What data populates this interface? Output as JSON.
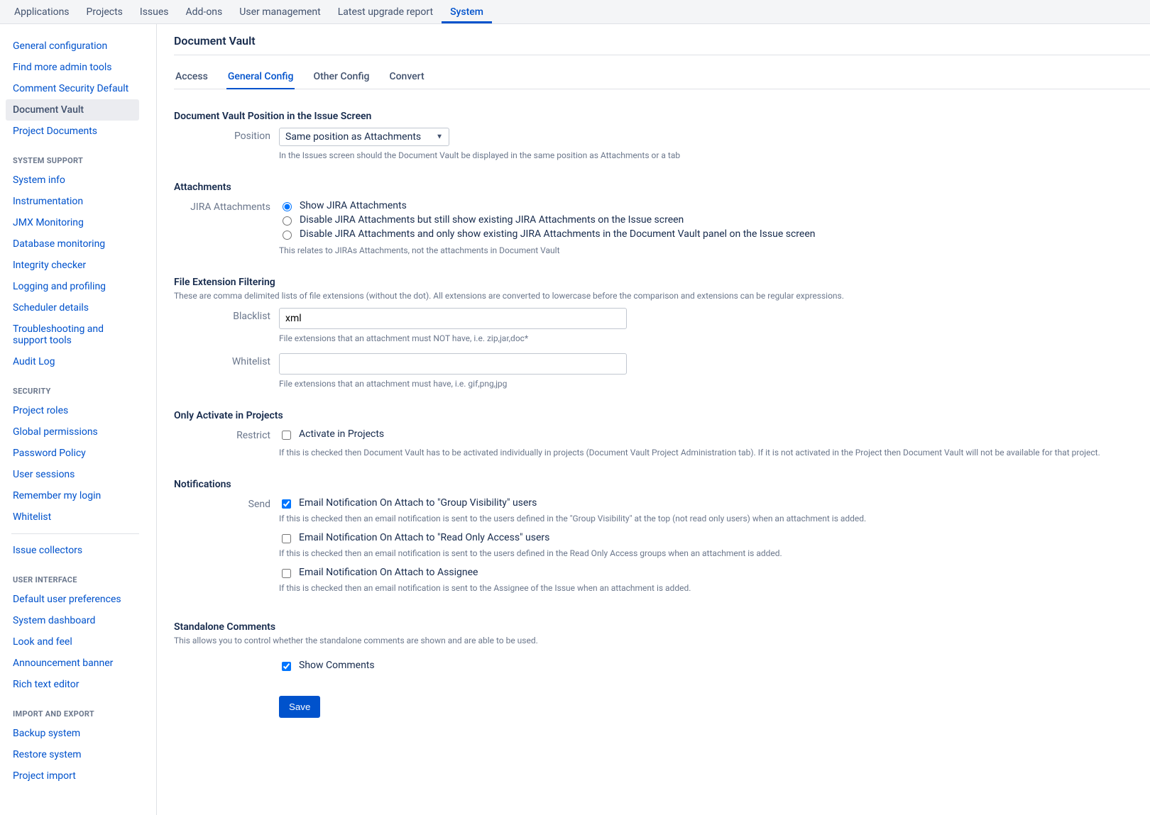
{
  "topnav": {
    "items": [
      {
        "label": "Applications"
      },
      {
        "label": "Projects"
      },
      {
        "label": "Issues"
      },
      {
        "label": "Add-ons"
      },
      {
        "label": "User management"
      },
      {
        "label": "Latest upgrade report"
      },
      {
        "label": "System"
      }
    ],
    "active_index": 6
  },
  "sidebar": {
    "top_items": [
      {
        "label": "General configuration"
      },
      {
        "label": "Find more admin tools"
      },
      {
        "label": "Comment Security Default"
      },
      {
        "label": "Document Vault"
      },
      {
        "label": "Project Documents"
      }
    ],
    "active_index": 3,
    "sections": [
      {
        "heading": "System Support",
        "items": [
          {
            "label": "System info"
          },
          {
            "label": "Instrumentation"
          },
          {
            "label": "JMX Monitoring"
          },
          {
            "label": "Database monitoring"
          },
          {
            "label": "Integrity checker"
          },
          {
            "label": "Logging and profiling"
          },
          {
            "label": "Scheduler details"
          },
          {
            "label": "Troubleshooting and support tools"
          },
          {
            "label": "Audit Log"
          }
        ]
      },
      {
        "heading": "Security",
        "items": [
          {
            "label": "Project roles"
          },
          {
            "label": "Global permissions"
          },
          {
            "label": "Password Policy"
          },
          {
            "label": "User sessions"
          },
          {
            "label": "Remember my login"
          },
          {
            "label": "Whitelist"
          }
        ]
      },
      {
        "heading": "",
        "items": [
          {
            "label": "Issue collectors"
          }
        ]
      },
      {
        "heading": "User Interface",
        "items": [
          {
            "label": "Default user preferences"
          },
          {
            "label": "System dashboard"
          },
          {
            "label": "Look and feel"
          },
          {
            "label": "Announcement banner"
          },
          {
            "label": "Rich text editor"
          }
        ]
      },
      {
        "heading": "Import and Export",
        "items": [
          {
            "label": "Backup system"
          },
          {
            "label": "Restore system"
          },
          {
            "label": "Project import"
          }
        ]
      }
    ]
  },
  "page": {
    "title": "Document Vault",
    "tabs": [
      {
        "label": "Access"
      },
      {
        "label": "General Config"
      },
      {
        "label": "Other Config"
      },
      {
        "label": "Convert"
      }
    ],
    "active_tab": 1
  },
  "position_section": {
    "title": "Document Vault Position in the Issue Screen",
    "label": "Position",
    "select_value": "Same position as Attachments",
    "help": "In the Issues screen should the Document Vault be displayed in the same position as Attachments or a tab"
  },
  "attachments_section": {
    "title": "Attachments",
    "label": "JIRA Attachments",
    "options": [
      {
        "label": "Show JIRA Attachments",
        "checked": true
      },
      {
        "label": "Disable JIRA Attachments but still show existing JIRA Attachments on the Issue screen",
        "checked": false
      },
      {
        "label": "Disable JIRA Attachments and only show existing JIRA Attachments in the Document Vault panel on the Issue screen",
        "checked": false
      }
    ],
    "help": "This relates to JIRAs Attachments, not the attachments in Document Vault"
  },
  "filter_section": {
    "title": "File Extension Filtering",
    "description": "These are comma delimited lists of file extensions (without the dot). All extensions are converted to lowercase before the comparison and extensions can be regular expressions.",
    "blacklist_label": "Blacklist",
    "blacklist_value": "xml",
    "blacklist_help": "File extensions that an attachment must NOT have, i.e. zip,jar,doc*",
    "whitelist_label": "Whitelist",
    "whitelist_value": "",
    "whitelist_help": "File extensions that an attachment must have, i.e. gif,png,jpg"
  },
  "restrict_section": {
    "title": "Only Activate in Projects",
    "label": "Restrict",
    "checkbox_label": "Activate in Projects",
    "checked": false,
    "help": "If this is checked then Document Vault has to be activated individually in projects (Document Vault Project Administration tab). If it is not activated in the Project then Document Vault will not be available for that project."
  },
  "notifications_section": {
    "title": "Notifications",
    "label": "Send",
    "options": [
      {
        "label": "Email Notification On Attach to \"Group Visibility\" users",
        "checked": true,
        "help": "If this is checked then an email notification is sent to the users defined in the \"Group Visibility\" at the top (not read only users) when an attachment is added."
      },
      {
        "label": "Email Notification On Attach to \"Read Only Access\" users",
        "checked": false,
        "help": "If this is checked then an email notification is sent to the users defined in the Read Only Access groups when an attachment is added."
      },
      {
        "label": "Email Notification On Attach to Assignee",
        "checked": false,
        "help": "If this is checked then an email notification is sent to the Assignee of the Issue when an attachment is added."
      }
    ]
  },
  "comments_section": {
    "title": "Standalone Comments",
    "description": "This allows you to control whether the standalone comments are shown and are able to be used.",
    "checkbox_label": "Show Comments",
    "checked": true
  },
  "save_button": "Save",
  "colors": {
    "link": "#0052cc",
    "text": "#172b4d",
    "muted": "#6b778c",
    "border": "#dfe1e6",
    "hover_bg": "#ebecf0",
    "topnav_bg": "#f4f5f7"
  }
}
